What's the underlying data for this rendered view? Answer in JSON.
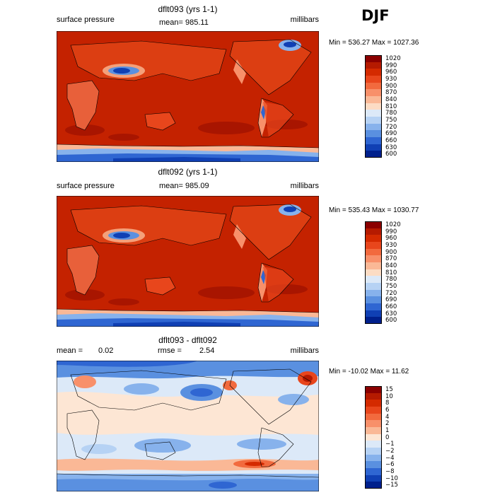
{
  "season": "DJF",
  "panels": [
    {
      "title": "dflt093 (yrs 1-1)",
      "left_label": "surface pressure",
      "mean_text": "mean= 985.11",
      "units": "millibars",
      "minmax": "Min = 536.27 Max = 1027.36",
      "levels": [
        "1020",
        "990",
        "960",
        "930",
        "900",
        "870",
        "840",
        "810",
        "780",
        "750",
        "720",
        "690",
        "660",
        "630",
        "600"
      ],
      "colors": [
        "#8b0000",
        "#b51a00",
        "#d42a00",
        "#e8461c",
        "#f26a3e",
        "#f8906a",
        "#fab896",
        "#fcdcc4",
        "#dce9f8",
        "#b6d2f4",
        "#87b2ec",
        "#5a90e0",
        "#2f66d2",
        "#1040b4",
        "#00208c"
      ]
    },
    {
      "title": "dflt092 (yrs 1-1)",
      "left_label": "surface pressure",
      "mean_text": "mean= 985.09",
      "units": "millibars",
      "minmax": "Min = 535.43 Max = 1030.77",
      "levels": [
        "1020",
        "990",
        "960",
        "930",
        "900",
        "870",
        "840",
        "810",
        "780",
        "750",
        "720",
        "690",
        "660",
        "630",
        "600"
      ],
      "colors": [
        "#8b0000",
        "#b51a00",
        "#d42a00",
        "#e8461c",
        "#f26a3e",
        "#f8906a",
        "#fab896",
        "#fcdcc4",
        "#dce9f8",
        "#b6d2f4",
        "#87b2ec",
        "#5a90e0",
        "#2f66d2",
        "#1040b4",
        "#00208c"
      ]
    },
    {
      "title": "dflt093 - dflt092",
      "mean_label": "mean =",
      "mean_value": "0.02",
      "rmse_label": "rmse =",
      "rmse_value": "2.54",
      "units": "millibars",
      "minmax": "Min = -10.02 Max =  11.62",
      "levels": [
        "15",
        "10",
        "8",
        "6",
        "4",
        "2",
        "1",
        "0",
        "−1",
        "−2",
        "−4",
        "−6",
        "−8",
        "−10",
        "−15"
      ],
      "colors": [
        "#8b0000",
        "#b51a00",
        "#d42a00",
        "#e8461c",
        "#f26a3e",
        "#f8906a",
        "#fab896",
        "#fde6d4",
        "#dce9f8",
        "#b6d2f4",
        "#87b2ec",
        "#5a90e0",
        "#2f66d2",
        "#1040b4",
        "#00208c"
      ]
    }
  ]
}
